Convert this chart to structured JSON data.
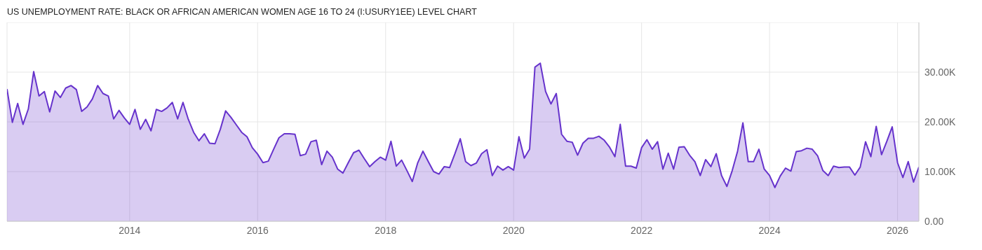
{
  "chart_data": {
    "type": "area",
    "title": "US UNEMPLOYMENT RATE: BLACK OR AFRICAN AMERICAN WOMEN AGE 16 TO 24 (I:USURY1EE) LEVEL CHART",
    "x": [
      "2012-02",
      "2012-03",
      "2012-04",
      "2012-05",
      "2012-06",
      "2012-07",
      "2012-08",
      "2012-09",
      "2012-10",
      "2012-11",
      "2012-12",
      "2013-01",
      "2013-02",
      "2013-03",
      "2013-04",
      "2013-05",
      "2013-06",
      "2013-07",
      "2013-08",
      "2013-09",
      "2013-10",
      "2013-11",
      "2013-12",
      "2014-01",
      "2014-02",
      "2014-03",
      "2014-04",
      "2014-05",
      "2014-06",
      "2014-07",
      "2014-08",
      "2014-09",
      "2014-10",
      "2014-11",
      "2014-12",
      "2015-01",
      "2015-02",
      "2015-03",
      "2015-04",
      "2015-05",
      "2015-06",
      "2015-07",
      "2015-08",
      "2015-09",
      "2015-10",
      "2015-11",
      "2015-12",
      "2016-01",
      "2016-02",
      "2016-03",
      "2016-04",
      "2016-05",
      "2016-06",
      "2016-07",
      "2016-08",
      "2016-09",
      "2016-10",
      "2016-11",
      "2016-12",
      "2017-01",
      "2017-02",
      "2017-03",
      "2017-04",
      "2017-05",
      "2017-06",
      "2017-07",
      "2017-08",
      "2017-09",
      "2017-10",
      "2017-11",
      "2017-12",
      "2018-01",
      "2018-02",
      "2018-03",
      "2018-04",
      "2018-05",
      "2018-06",
      "2018-07",
      "2018-08",
      "2018-09",
      "2018-10",
      "2018-11",
      "2018-12",
      "2019-01",
      "2019-02",
      "2019-03",
      "2019-04",
      "2019-05",
      "2019-06",
      "2019-07",
      "2019-08",
      "2019-09",
      "2019-10",
      "2019-11",
      "2019-12",
      "2020-01",
      "2020-02",
      "2020-03",
      "2020-04",
      "2020-05",
      "2020-06",
      "2020-07",
      "2020-08",
      "2020-09",
      "2020-10",
      "2020-11",
      "2020-12",
      "2021-01",
      "2021-02",
      "2021-03",
      "2021-04",
      "2021-05",
      "2021-06",
      "2021-07",
      "2021-08",
      "2021-09",
      "2021-10",
      "2021-11",
      "2021-12",
      "2022-01",
      "2022-02",
      "2022-03",
      "2022-04",
      "2022-05",
      "2022-06",
      "2022-07",
      "2022-08",
      "2022-09",
      "2022-10",
      "2022-11",
      "2022-12",
      "2023-01",
      "2023-02",
      "2023-03",
      "2023-04",
      "2023-05",
      "2023-06",
      "2023-07",
      "2023-08",
      "2023-09",
      "2023-10",
      "2023-11",
      "2023-12",
      "2024-01",
      "2024-02",
      "2024-03",
      "2024-04",
      "2024-05",
      "2024-06",
      "2024-07",
      "2024-08",
      "2024-09",
      "2024-10",
      "2024-11",
      "2024-12",
      "2025-01",
      "2025-02",
      "2025-03",
      "2025-04",
      "2025-05",
      "2025-06",
      "2025-07",
      "2025-08",
      "2025-09",
      "2025-10",
      "2025-11",
      "2025-12",
      "2026-01",
      "2026-02",
      "2026-03",
      "2026-04",
      "2026-05"
    ],
    "series": [
      {
        "color": "#6633cc",
        "values": [
          26600,
          19900,
          23700,
          19500,
          22600,
          30100,
          25200,
          26100,
          22000,
          26200,
          24900,
          26800,
          27300,
          26500,
          22100,
          23000,
          24600,
          27300,
          25700,
          25200,
          20600,
          22300,
          20800,
          19500,
          22500,
          18500,
          20500,
          18200,
          22500,
          22100,
          22800,
          23900,
          20600,
          23900,
          20500,
          17900,
          16200,
          17600,
          15700,
          15600,
          18500,
          22200,
          20900,
          19400,
          17900,
          17000,
          14800,
          13500,
          11800,
          12100,
          14500,
          16800,
          17600,
          17600,
          17500,
          13200,
          13500,
          16000,
          16300,
          11400,
          14100,
          12900,
          10500,
          9700,
          11800,
          13800,
          14300,
          12600,
          11000,
          12000,
          12900,
          12300,
          16100,
          11100,
          12300,
          10200,
          8000,
          11700,
          14100,
          12000,
          10000,
          9500,
          11000,
          10800,
          13600,
          16600,
          12000,
          11200,
          11700,
          13600,
          14400,
          9200,
          11100,
          10300,
          11000,
          10300,
          17000,
          12700,
          14500,
          31000,
          31800,
          26100,
          23600,
          25700,
          17500,
          16100,
          15900,
          13300,
          15700,
          16700,
          16700,
          17100,
          16300,
          14900,
          13000,
          19500,
          11100,
          11100,
          10700,
          14800,
          16400,
          14500,
          16000,
          10500,
          13700,
          10500,
          14900,
          15000,
          13300,
          12000,
          9200,
          12400,
          11000,
          13600,
          9200,
          7000,
          10200,
          14100,
          19800,
          12000,
          12000,
          14500,
          10500,
          9200,
          6800,
          9100,
          10700,
          10100,
          14000,
          14200,
          14700,
          14500,
          13200,
          10200,
          9200,
          11100,
          10800,
          10900,
          10900,
          9300,
          10900,
          16000,
          13000,
          19100,
          13400,
          16100,
          19000,
          11800,
          8800,
          12000,
          7900,
          10900
        ]
      }
    ],
    "xlim": [
      "2012-02",
      "2026-05"
    ],
    "xticks": [
      "2014",
      "2016",
      "2018",
      "2020",
      "2022",
      "2024",
      "2026"
    ],
    "ylim": [
      0,
      40000
    ],
    "yticks": [
      {
        "value": 0,
        "label": "0.00"
      },
      {
        "value": 10000,
        "label": "10.00K"
      },
      {
        "value": 20000,
        "label": "20.00K"
      },
      {
        "value": 30000,
        "label": "30.00K"
      }
    ],
    "grid": true,
    "legend": false,
    "marker": "none",
    "line_style": "solid"
  }
}
